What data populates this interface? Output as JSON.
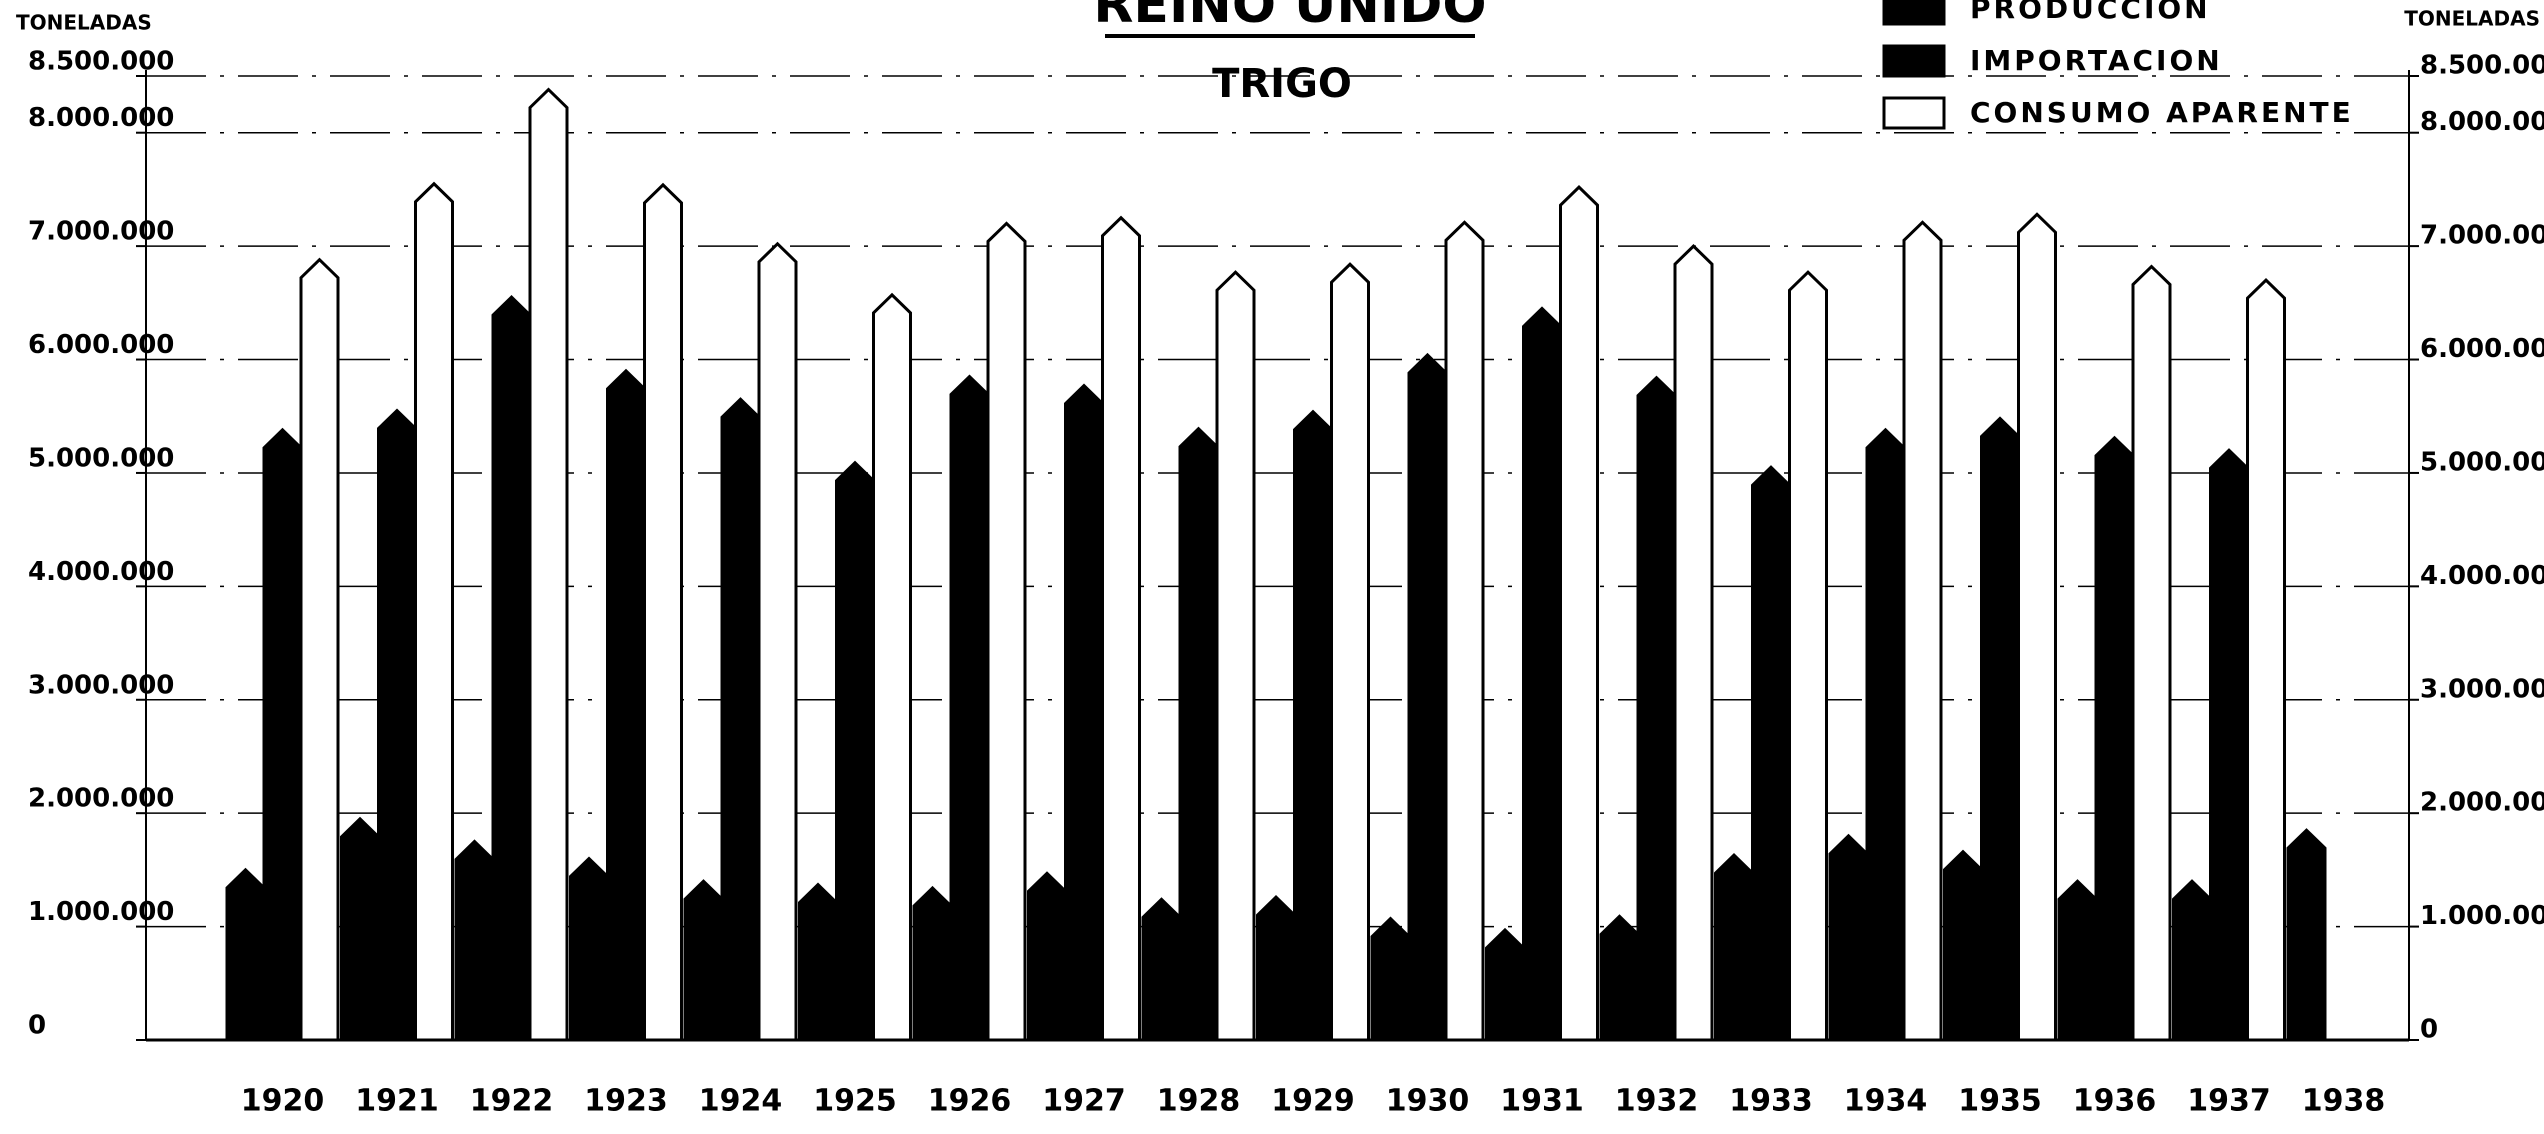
{
  "chart_data": {
    "type": "bar",
    "title": "REINO UNIDO",
    "subtitle": "TRIGO",
    "ylabel": "TONELADAS",
    "y2label": "TONELADAS",
    "categories": [
      "1920",
      "1921",
      "1922",
      "1923",
      "1924",
      "1925",
      "1926",
      "1927",
      "1928",
      "1929",
      "1930",
      "1931",
      "1932",
      "1933",
      "1934",
      "1935",
      "1936",
      "1937",
      "1938"
    ],
    "series": [
      {
        "name": "PRODUCCION",
        "color": "#000000",
        "values": [
          1500000,
          1950000,
          1750000,
          1600000,
          1400000,
          1370000,
          1340000,
          1470000,
          1240000,
          1260000,
          1070000,
          970000,
          1090000,
          1630000,
          1800000,
          1660000,
          1400000,
          1400000,
          1850000
        ]
      },
      {
        "name": "IMPORTACION",
        "color": "#000000",
        "values": [
          5380000,
          5550000,
          6550000,
          5900000,
          5650000,
          5090000,
          5850000,
          5770000,
          5390000,
          5540000,
          6040000,
          6450000,
          5840000,
          5050000,
          5380000,
          5480000,
          5310000,
          5200000,
          null
        ]
      },
      {
        "name": "CONSUMO APARENTE",
        "color": "#ffffff",
        "values": [
          6880000,
          7550000,
          8380000,
          7540000,
          7020000,
          6570000,
          7200000,
          7250000,
          6770000,
          6840000,
          7210000,
          7520000,
          7000000,
          6770000,
          7210000,
          7280000,
          6820000,
          6700000,
          null
        ]
      }
    ],
    "ylim": [
      0,
      8500000
    ],
    "yticks": [
      0,
      {
        "value": 1000000,
        "label": "1.000.000"
      },
      {
        "value": 2000000,
        "label": "2.000.000"
      },
      {
        "value": 3000000,
        "label": "3.000.000"
      },
      {
        "value": 4000000,
        "label": "4.000.000"
      },
      {
        "value": 5000000,
        "label": "5.000.000"
      },
      {
        "value": 6000000,
        "label": "6.000.000"
      },
      {
        "value": 7000000,
        "label": "7.000.000"
      },
      {
        "value": 8000000,
        "label": "8.000.000"
      },
      {
        "value": 8500000,
        "label": "8.500.000"
      }
    ],
    "grid": true,
    "legend": "top-right"
  }
}
